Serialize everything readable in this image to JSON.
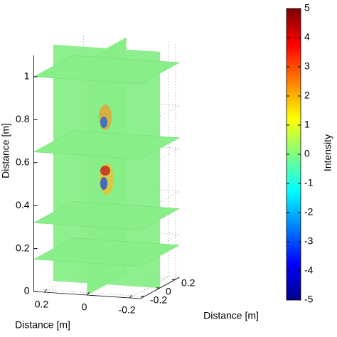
{
  "chart_data": {
    "type": "slice3d",
    "xlabel": "Distance [m]",
    "ylabel": "Distance [m]",
    "zlabel": "Distance [m]",
    "xlim": [
      -0.25,
      0.25
    ],
    "ylim": [
      -0.25,
      0.25
    ],
    "zlim": [
      0,
      1.1
    ],
    "xticks": [
      0.2,
      0,
      -0.2
    ],
    "yticks": [
      -0.2,
      0,
      0.2
    ],
    "zticks": [
      0,
      0.2,
      0.4,
      0.6,
      0.8,
      1
    ],
    "slices_z": [
      0.15,
      0.32,
      0.65,
      1.0
    ],
    "slice_color": "#88ee88",
    "grid": true,
    "colorbar": {
      "label": "Intensity",
      "lim": [
        -5,
        5
      ],
      "ticks": [
        5,
        4,
        3,
        2,
        1,
        0,
        -1,
        -2,
        -3,
        -4,
        -5
      ],
      "colormap": "jet"
    }
  }
}
